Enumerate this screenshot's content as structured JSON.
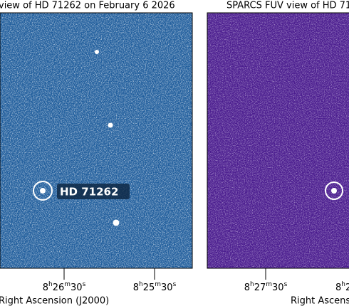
{
  "panels": [
    {
      "title": "view of HD 71262 on February 6 2026",
      "ticks": [
        "8h26m30s",
        "8h25m30s"
      ],
      "xlabel": "Right Ascension (J2000)",
      "target_label": "HD 71262"
    },
    {
      "title": "SPARCS FUV view of HD 71",
      "ticks": [
        "8h27m30s",
        "8h2"
      ],
      "xlabel": "Right Ascension"
    }
  ]
}
